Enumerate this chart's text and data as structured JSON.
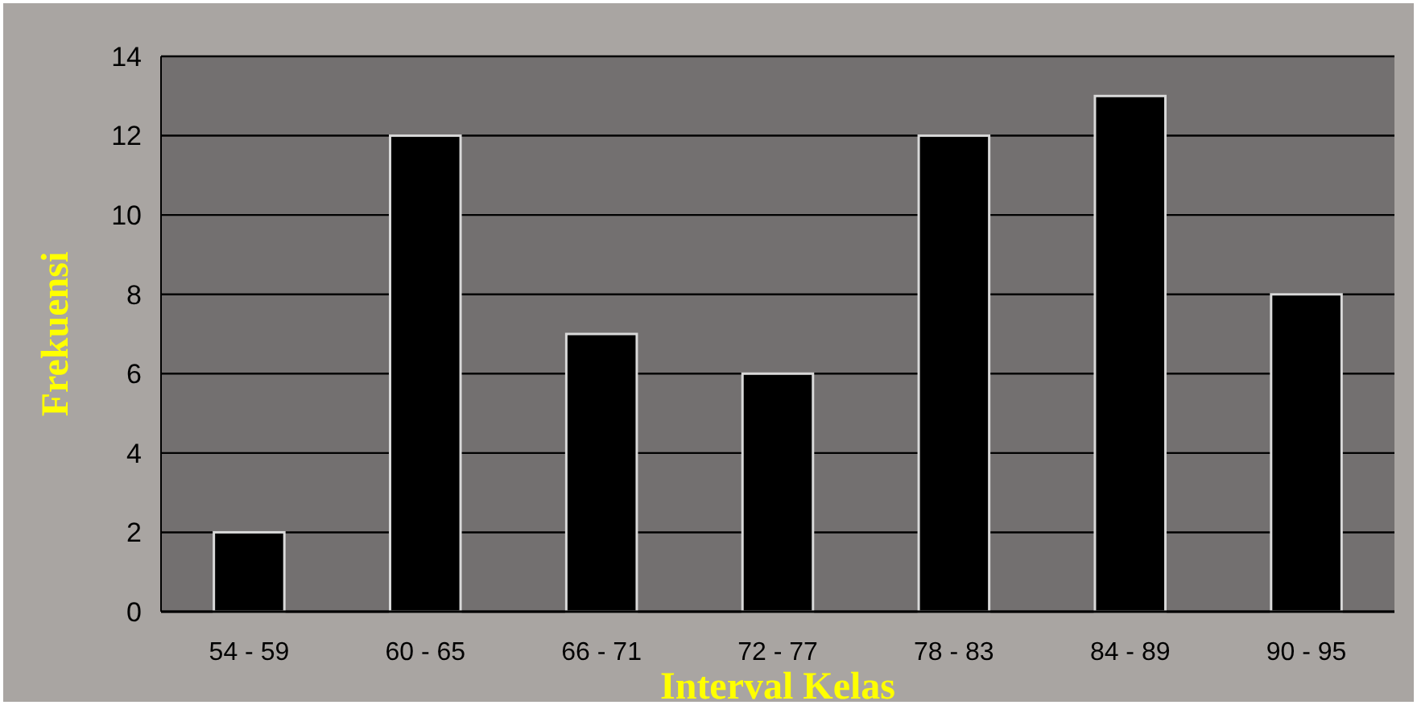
{
  "chart_data": {
    "type": "bar",
    "xlabel": "Interval Kelas",
    "ylabel": "Frekuensi",
    "categories": [
      "54 - 59",
      "60 - 65",
      "66 - 71",
      "72 - 77",
      "78 - 83",
      "84 - 89",
      "90 - 95"
    ],
    "values": [
      2,
      12,
      7,
      6,
      12,
      13,
      8
    ],
    "color": "#000000",
    "ylim": [
      0,
      14
    ],
    "yticks": [
      0,
      2,
      4,
      6,
      8,
      10,
      12,
      14
    ],
    "grid": "y"
  }
}
